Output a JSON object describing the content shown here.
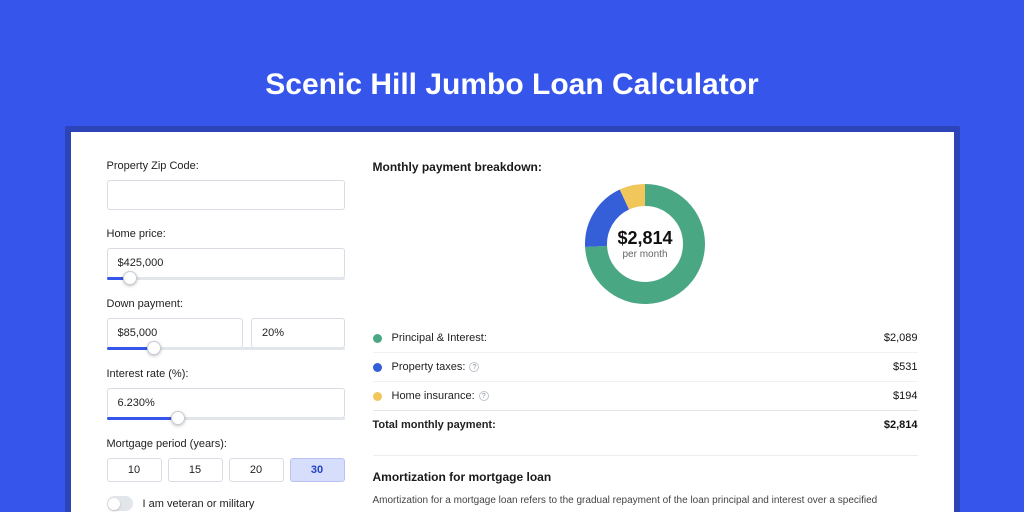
{
  "page": {
    "background_color": "#3555eb",
    "shadow_color": "#2c44b8",
    "card_color": "#ffffff",
    "title": "Scenic Hill Jumbo Loan Calculator",
    "title_color": "#ffffff",
    "title_fontsize": 30
  },
  "form": {
    "zip": {
      "label": "Property Zip Code:",
      "value": ""
    },
    "home_price": {
      "label": "Home price:",
      "value": "$425,000",
      "slider_pct": 10
    },
    "down_payment": {
      "label": "Down payment:",
      "amount": "$85,000",
      "percent": "20%",
      "slider_pct": 20
    },
    "interest_rate": {
      "label": "Interest rate (%):",
      "value": "6.230%",
      "slider_pct": 30
    },
    "mortgage_period": {
      "label": "Mortgage period (years):",
      "options": [
        "10",
        "15",
        "20",
        "30"
      ],
      "active_index": 3,
      "btn_active_bg": "#d7defb",
      "btn_active_border": "#b8c3f4"
    },
    "veteran": {
      "label": "I am veteran or military",
      "on": false
    }
  },
  "breakdown": {
    "title": "Monthly payment breakdown:",
    "donut": {
      "size": 120,
      "thickness": 22,
      "center_amount": "$2,814",
      "center_sub": "per month",
      "segments": [
        {
          "name": "principal_interest",
          "value": 2089,
          "pct": 74.2,
          "color": "#4aa784"
        },
        {
          "name": "property_taxes",
          "value": 531,
          "pct": 18.9,
          "color": "#355fd9"
        },
        {
          "name": "home_insurance",
          "value": 194,
          "pct": 6.9,
          "color": "#f1c65b"
        }
      ]
    },
    "rows": [
      {
        "dot_color": "#4aa784",
        "label": "Principal & Interest:",
        "amount": "$2,089",
        "info": false
      },
      {
        "dot_color": "#355fd9",
        "label": "Property taxes:",
        "amount": "$531",
        "info": true
      },
      {
        "dot_color": "#f1c65b",
        "label": "Home insurance:",
        "amount": "$194",
        "info": true
      }
    ],
    "total": {
      "label": "Total monthly payment:",
      "amount": "$2,814"
    }
  },
  "amortization": {
    "title": "Amortization for mortgage loan",
    "text": "Amortization for a mortgage loan refers to the gradual repayment of the loan principal and interest over a specified"
  }
}
